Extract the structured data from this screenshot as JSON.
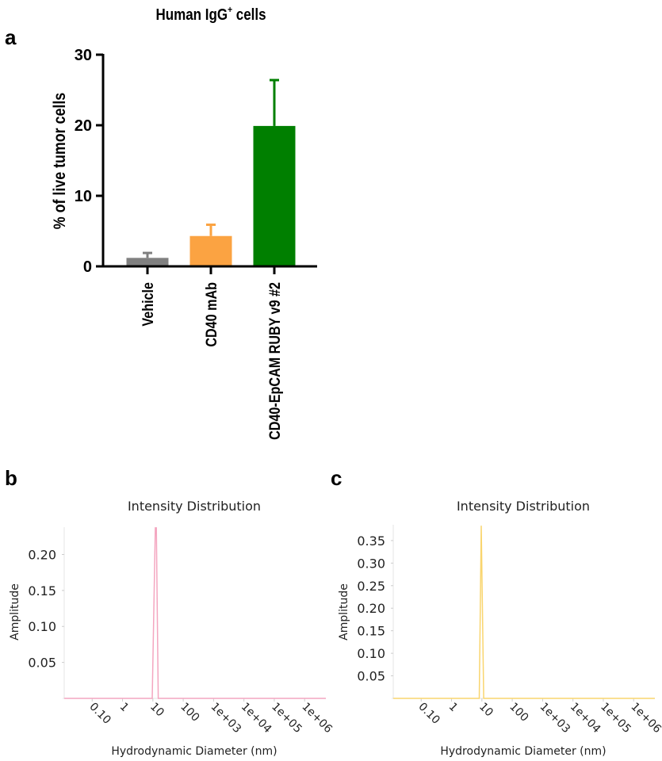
{
  "panels": {
    "a": "a",
    "b": "b",
    "c": "c"
  },
  "chart_data": [
    {
      "type": "bar",
      "title": "Human IgG",
      "title_superscript": "+",
      "title_suffix": " cells",
      "ylabel": "% of live tumor cells",
      "xlabel": "",
      "ylim": [
        0,
        30
      ],
      "yticks": [
        "0",
        "10",
        "20",
        "30"
      ],
      "ytick_values": [
        0,
        10,
        20,
        30
      ],
      "categories": [
        "Vehicle",
        "CD40 mAb",
        "CD40-EpCAM RUBY v9 #2"
      ],
      "values": [
        1.2,
        4.3,
        19.9
      ],
      "error_upper": [
        0.7,
        1.6,
        6.5
      ],
      "colors": [
        "#808080",
        "#FBA342",
        "#007F00"
      ]
    },
    {
      "type": "line",
      "title": "Intensity Distribution",
      "xlabel": "Hydrodynamic Diameter (nm)",
      "ylabel": "Amplitude",
      "x_scale": "log",
      "xticks": [
        "0.10",
        "1",
        "10",
        "100",
        "1e+03",
        "1e+04",
        "1e+05",
        "1e+06"
      ],
      "xtick_values": [
        0.1,
        1,
        10,
        100,
        1000,
        10000,
        100000,
        1000000
      ],
      "yticks": [
        "0.05",
        "0.10",
        "0.15",
        "0.20"
      ],
      "ytick_values": [
        0.05,
        0.1,
        0.15,
        0.2
      ],
      "ylim": [
        0,
        0.238
      ],
      "xlim": [
        0.012,
        5000000
      ],
      "color": "#F4A6C0",
      "x": [
        0.012,
        9.5,
        12.0,
        13.0,
        15.0,
        5000000
      ],
      "y": [
        0,
        0,
        0.237,
        0.237,
        0,
        0
      ]
    },
    {
      "type": "line",
      "title": "Intensity Distribution",
      "xlabel": "Hydrodynamic Diameter (nm)",
      "ylabel": "Amplitude",
      "x_scale": "log",
      "xticks": [
        "0.10",
        "1",
        "10",
        "100",
        "1e+03",
        "1e+04",
        "1e+05",
        "1e+06"
      ],
      "xtick_values": [
        0.1,
        1,
        10,
        100,
        1000,
        10000,
        100000,
        1000000
      ],
      "yticks": [
        "0.05",
        "0.10",
        "0.15",
        "0.20",
        "0.25",
        "0.30",
        "0.35"
      ],
      "ytick_values": [
        0.05,
        0.1,
        0.15,
        0.2,
        0.25,
        0.3,
        0.35
      ],
      "ylim": [
        0,
        0.385
      ],
      "xlim": [
        0.012,
        5000000
      ],
      "color": "#F9D56E",
      "x": [
        0.012,
        8.2,
        9.5,
        11.5,
        5000000
      ],
      "y": [
        0,
        0,
        0.383,
        0,
        0
      ]
    }
  ]
}
